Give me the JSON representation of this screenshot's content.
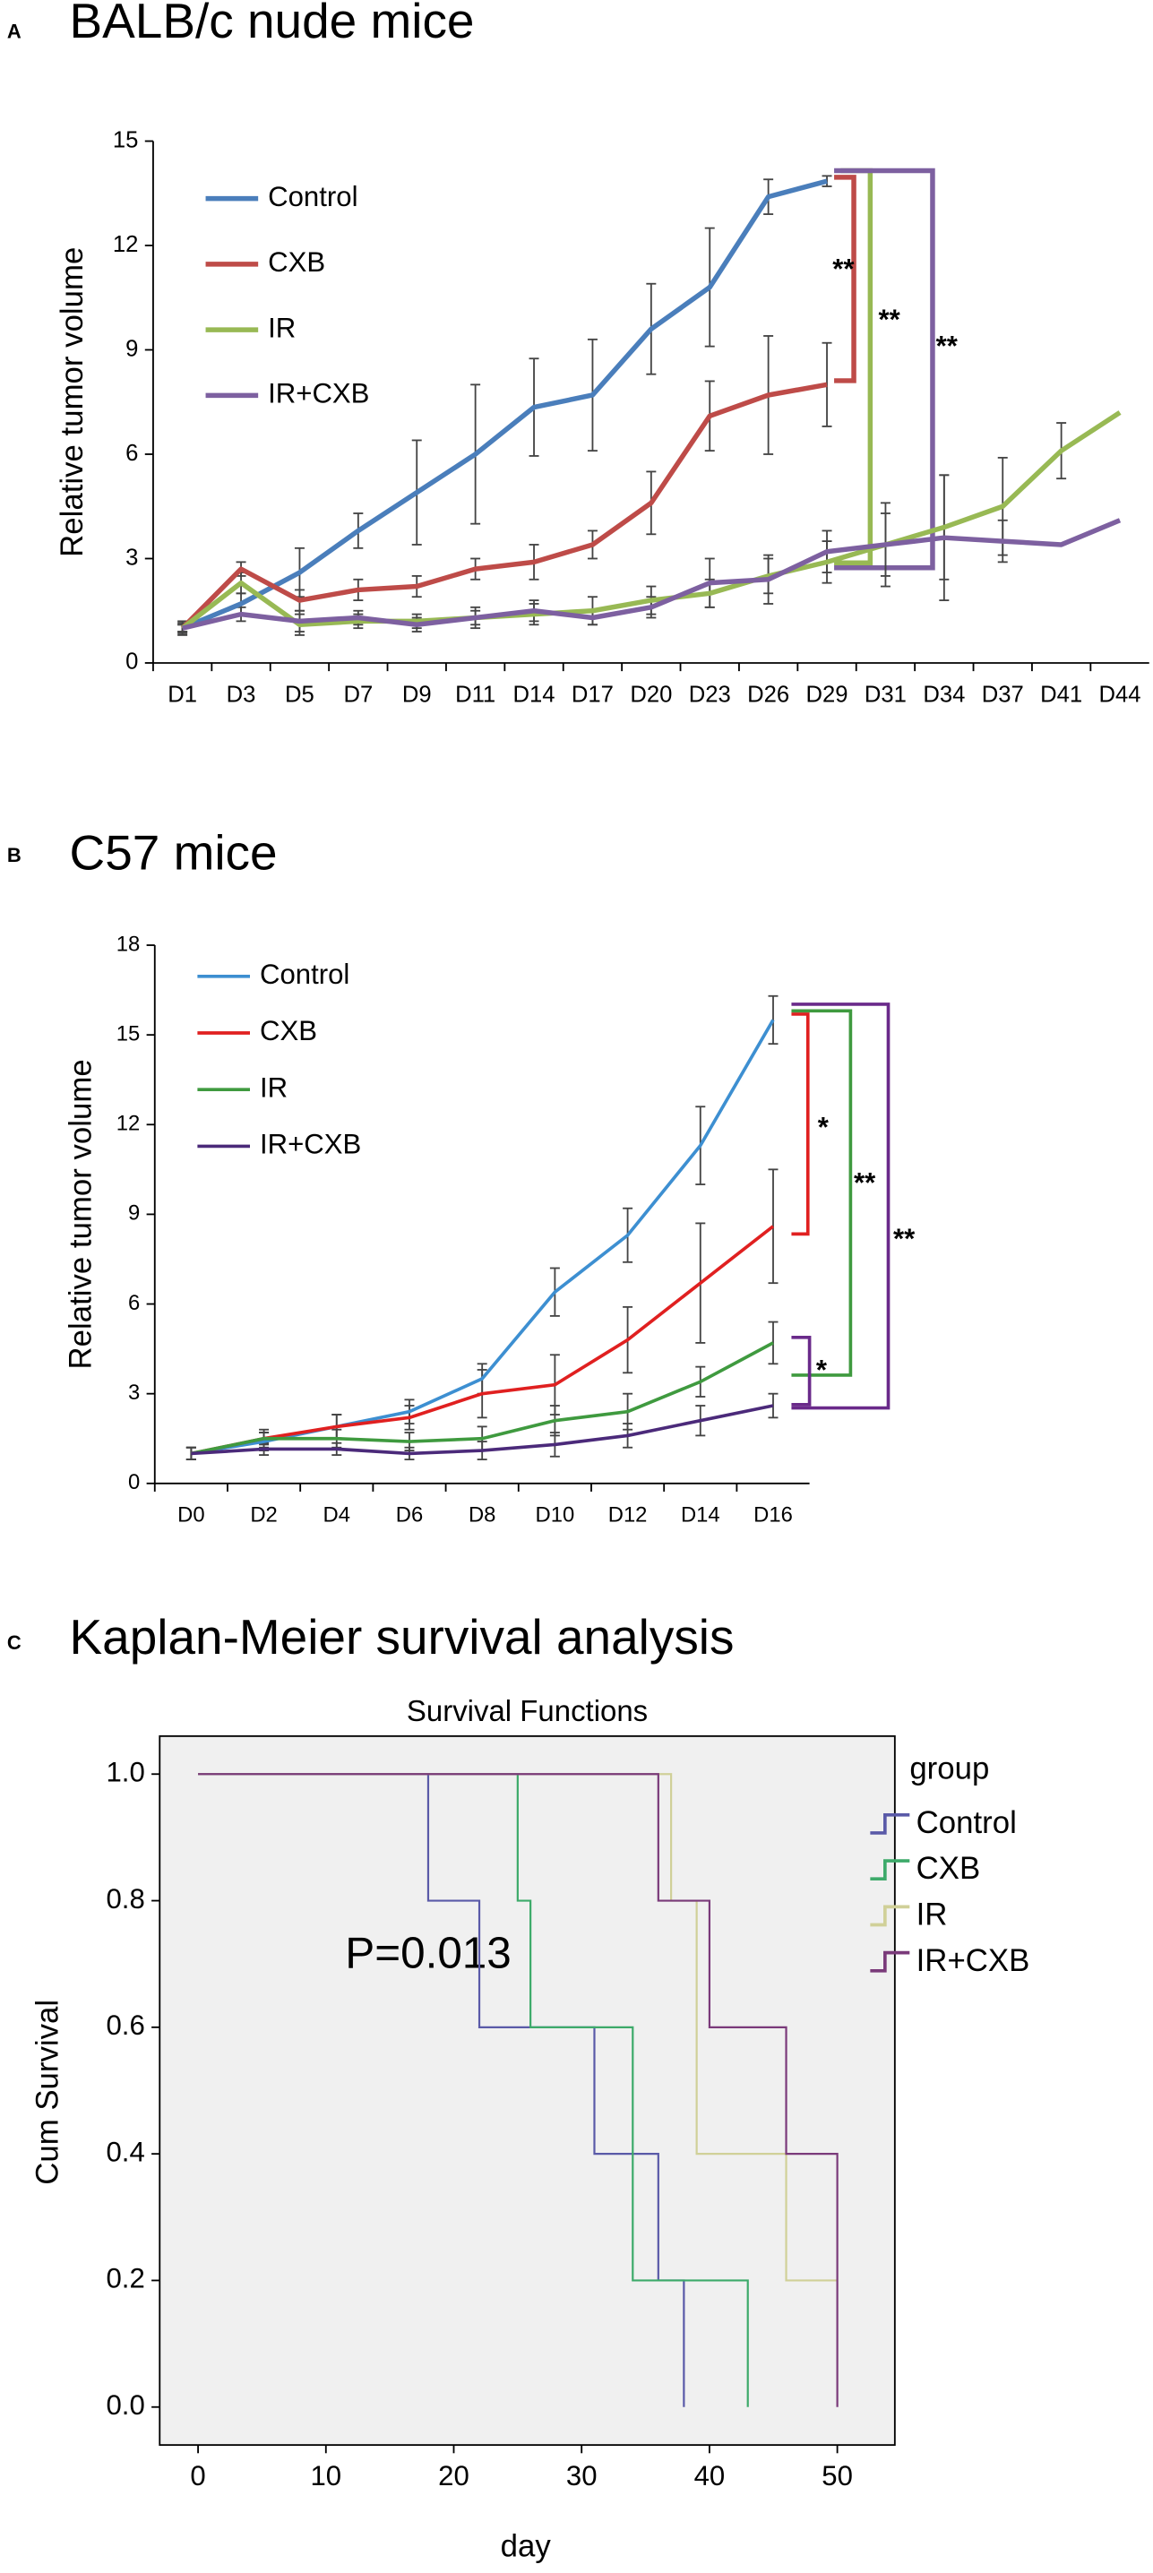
{
  "chart_data": [
    {
      "type": "line",
      "panel": "A",
      "title": "BALB/c nude mice",
      "ylabel": "Relative tumor volume",
      "categories": [
        "D1",
        "D3",
        "D5",
        "D7",
        "D9",
        "D11",
        "D14",
        "D17",
        "D20",
        "D23",
        "D26",
        "D29",
        "D31",
        "D34",
        "D37",
        "D41",
        "D44"
      ],
      "ylim": [
        0,
        15
      ],
      "yticks": [
        0,
        3,
        6,
        9,
        12,
        15
      ],
      "series": [
        {
          "name": "Control",
          "color": "#4a7ebb",
          "values": [
            1,
            1.7,
            2.6,
            3.8,
            4.9,
            6.0,
            7.35,
            7.7,
            9.6,
            10.8,
            13.4,
            13.85,
            null,
            null,
            null,
            null,
            null
          ],
          "errors": [
            0.2,
            0.3,
            0.7,
            0.5,
            1.5,
            2.0,
            1.4,
            1.6,
            1.3,
            1.7,
            0.5,
            0.15,
            null,
            null,
            null,
            null,
            null
          ]
        },
        {
          "name": "CXB",
          "color": "#be4b48",
          "values": [
            1,
            2.7,
            1.8,
            2.1,
            2.2,
            2.7,
            2.9,
            3.4,
            4.6,
            7.1,
            7.7,
            8.0,
            null,
            null,
            null,
            null,
            null
          ],
          "errors": [
            0.15,
            0.2,
            0.3,
            0.3,
            0.3,
            0.3,
            0.5,
            0.4,
            0.9,
            1.0,
            1.7,
            1.2,
            null,
            null,
            null,
            null,
            null
          ]
        },
        {
          "name": "IR",
          "color": "#98b954",
          "values": [
            1,
            2.3,
            1.1,
            1.2,
            1.2,
            1.3,
            1.4,
            1.5,
            1.8,
            2.0,
            2.5,
            2.9,
            3.4,
            3.9,
            4.5,
            6.1,
            7.2
          ],
          "errors": [
            0.1,
            0.3,
            0.3,
            0.2,
            0.2,
            0.3,
            0.3,
            0.4,
            0.4,
            0.4,
            0.5,
            0.6,
            1.2,
            1.5,
            1.4,
            0.8,
            null
          ]
        },
        {
          "name": "IR+CXB",
          "color": "#7d60a0",
          "values": [
            1,
            1.4,
            1.2,
            1.3,
            1.1,
            1.3,
            1.5,
            1.3,
            1.6,
            2.3,
            2.4,
            3.2,
            3.4,
            3.6,
            3.5,
            3.4,
            4.1
          ],
          "errors": [
            0.1,
            0.2,
            0.3,
            0.2,
            0.2,
            0.2,
            0.3,
            0.2,
            0.3,
            0.7,
            0.7,
            0.6,
            0.9,
            1.8,
            0.6,
            null,
            null
          ]
        }
      ],
      "annotations": [
        {
          "text": "**",
          "color": "#be4b48"
        },
        {
          "text": "**",
          "color": "#98b954"
        },
        {
          "text": "**",
          "color": "#7d60a0"
        }
      ]
    },
    {
      "type": "line",
      "panel": "B",
      "title": "C57 mice",
      "ylabel": "Relative tumor volume",
      "categories": [
        "D0",
        "D2",
        "D4",
        "D6",
        "D8",
        "D10",
        "D12",
        "D14",
        "D16"
      ],
      "ylim": [
        0,
        18
      ],
      "yticks": [
        0,
        3,
        6,
        9,
        12,
        15,
        18
      ],
      "series": [
        {
          "name": "Control",
          "color": "#3d8fd1",
          "values": [
            1,
            1.4,
            1.9,
            2.4,
            3.5,
            6.4,
            8.3,
            11.3,
            15.5
          ],
          "errors": [
            0.2,
            0.3,
            0.4,
            0.4,
            0.5,
            0.8,
            0.9,
            1.3,
            0.8
          ]
        },
        {
          "name": "CXB",
          "color": "#e02020",
          "values": [
            1,
            1.5,
            1.9,
            2.2,
            3.0,
            3.3,
            4.8,
            6.7,
            8.6
          ],
          "errors": [
            0.2,
            0.3,
            0.4,
            0.4,
            0.8,
            1.0,
            1.1,
            2.0,
            1.9
          ]
        },
        {
          "name": "IR",
          "color": "#3f9a3f",
          "values": [
            1,
            1.5,
            1.5,
            1.4,
            1.5,
            2.1,
            2.4,
            3.4,
            4.7
          ],
          "errors": [
            0.2,
            0.2,
            0.3,
            0.3,
            0.4,
            0.5,
            0.6,
            0.5,
            0.7
          ]
        },
        {
          "name": "IR+CXB",
          "color": "#4b2a7a",
          "values": [
            1,
            1.15,
            1.15,
            1.0,
            1.1,
            1.3,
            1.6,
            2.1,
            2.6
          ],
          "errors": [
            0.2,
            0.2,
            0.2,
            0.2,
            0.3,
            0.4,
            0.4,
            0.5,
            0.4
          ]
        }
      ],
      "annotations": [
        {
          "text": "*",
          "color": "#000000"
        },
        {
          "text": "**",
          "color": "#000000"
        },
        {
          "text": "**",
          "color": "#000000"
        },
        {
          "text": "*",
          "color": "#000000"
        }
      ]
    },
    {
      "type": "step",
      "panel": "C",
      "title": "Kaplan-Meier survival analysis",
      "subtitle": "Survival Functions",
      "xlabel": "day",
      "ylabel": "Cum Survival",
      "legend_title": "group",
      "annotation": "P=0.013",
      "xlim": [
        -3,
        54.5
      ],
      "xticks": [
        0,
        10,
        20,
        30,
        40,
        50
      ],
      "ylim": [
        -0.06,
        1.06
      ],
      "yticks": [
        {
          "value": 0,
          "label": "0.0"
        },
        {
          "value": 0.2,
          "label": "0.2"
        },
        {
          "value": 0.4,
          "label": "0.4"
        },
        {
          "value": 0.6,
          "label": "0.6"
        },
        {
          "value": 0.8,
          "label": "0.8"
        },
        {
          "value": 1,
          "label": "1.0"
        }
      ],
      "series": [
        {
          "name": "Control",
          "color": "#5a5aa8",
          "x": [
            0,
            18,
            22,
            31,
            36,
            38
          ],
          "values": [
            1,
            0.8,
            0.6,
            0.4,
            0.2,
            0
          ]
        },
        {
          "name": "CXB",
          "color": "#3daa6a",
          "x": [
            0,
            25,
            26,
            34,
            43
          ],
          "values": [
            1,
            0.8,
            0.6,
            0.2,
            0
          ]
        },
        {
          "name": "IR",
          "color": "#d0d098",
          "x": [
            0,
            37,
            39,
            46,
            50
          ],
          "values": [
            1,
            0.8,
            0.4,
            0.2,
            0.2
          ]
        },
        {
          "name": "IR+CXB",
          "color": "#7a3a7a",
          "x": [
            0,
            36,
            40,
            46,
            50
          ],
          "values": [
            1,
            0.8,
            0.6,
            0.4,
            0
          ]
        }
      ]
    }
  ]
}
